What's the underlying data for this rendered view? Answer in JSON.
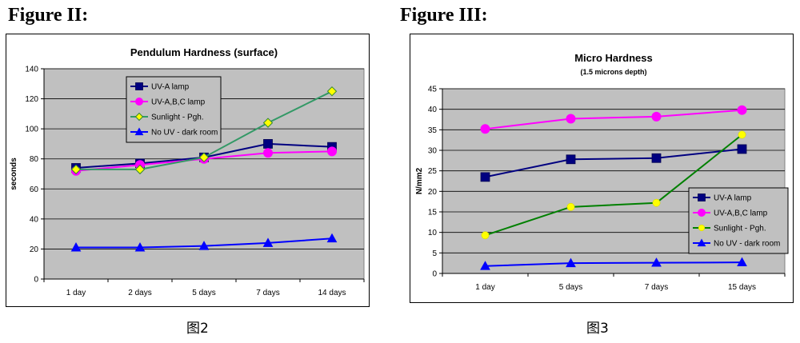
{
  "headings": {
    "fig2": "Figure II:",
    "fig3": "Figure III:"
  },
  "captions": {
    "fig2": "图2",
    "fig3": "图3"
  },
  "chart_data": [
    {
      "type": "line",
      "title": "Pendulum Hardness (surface)",
      "subtitle": "",
      "xlabel": "",
      "ylabel": "seconds",
      "categories": [
        "1 day",
        "2 days",
        "5 days",
        "7 days",
        "14 days"
      ],
      "ylim": [
        0,
        140
      ],
      "yticks": [
        0,
        20,
        40,
        60,
        80,
        100,
        120,
        140
      ],
      "grid": true,
      "legend_position": "top-left",
      "series": [
        {
          "name": "UV-A lamp",
          "color": "#000080",
          "marker": "square",
          "values": [
            74,
            77,
            81,
            90,
            88
          ]
        },
        {
          "name": "UV-A,B,C lamp",
          "color": "#ff00ff",
          "marker": "circle",
          "values": [
            72,
            76,
            80,
            84,
            85
          ]
        },
        {
          "name": "Sunlight - Pgh.",
          "color": "#339966",
          "marker": "diamond",
          "values": [
            73,
            73,
            81,
            104,
            125
          ]
        },
        {
          "name": "No UV - dark room",
          "color": "#0000ff",
          "marker": "triangle",
          "values": [
            21,
            21,
            22,
            24,
            27
          ]
        }
      ]
    },
    {
      "type": "line",
      "title": "Micro Hardness",
      "subtitle": "(1.5 microns depth)",
      "xlabel": "",
      "ylabel": "N/mm2",
      "categories": [
        "1 day",
        "5 days",
        "7 days",
        "15 days"
      ],
      "ylim": [
        0,
        45
      ],
      "yticks": [
        0,
        5,
        10,
        15,
        20,
        25,
        30,
        35,
        40,
        45
      ],
      "grid": true,
      "legend_position": "bottom-right",
      "series": [
        {
          "name": "UV-A lamp",
          "color": "#000080",
          "marker": "square",
          "values": [
            23.5,
            27.8,
            28.1,
            30.3
          ]
        },
        {
          "name": "UV-A,B,C lamp",
          "color": "#ff00ff",
          "marker": "circle",
          "values": [
            35.2,
            37.7,
            38.2,
            39.8
          ]
        },
        {
          "name": "Sunlight - Pgh.",
          "color": "#008000",
          "marker": "circle-yellow",
          "values": [
            9.3,
            16.2,
            17.2,
            33.8
          ]
        },
        {
          "name": "No UV - dark room",
          "color": "#0000ff",
          "marker": "triangle",
          "values": [
            1.8,
            2.5,
            2.6,
            2.7
          ]
        }
      ]
    }
  ]
}
